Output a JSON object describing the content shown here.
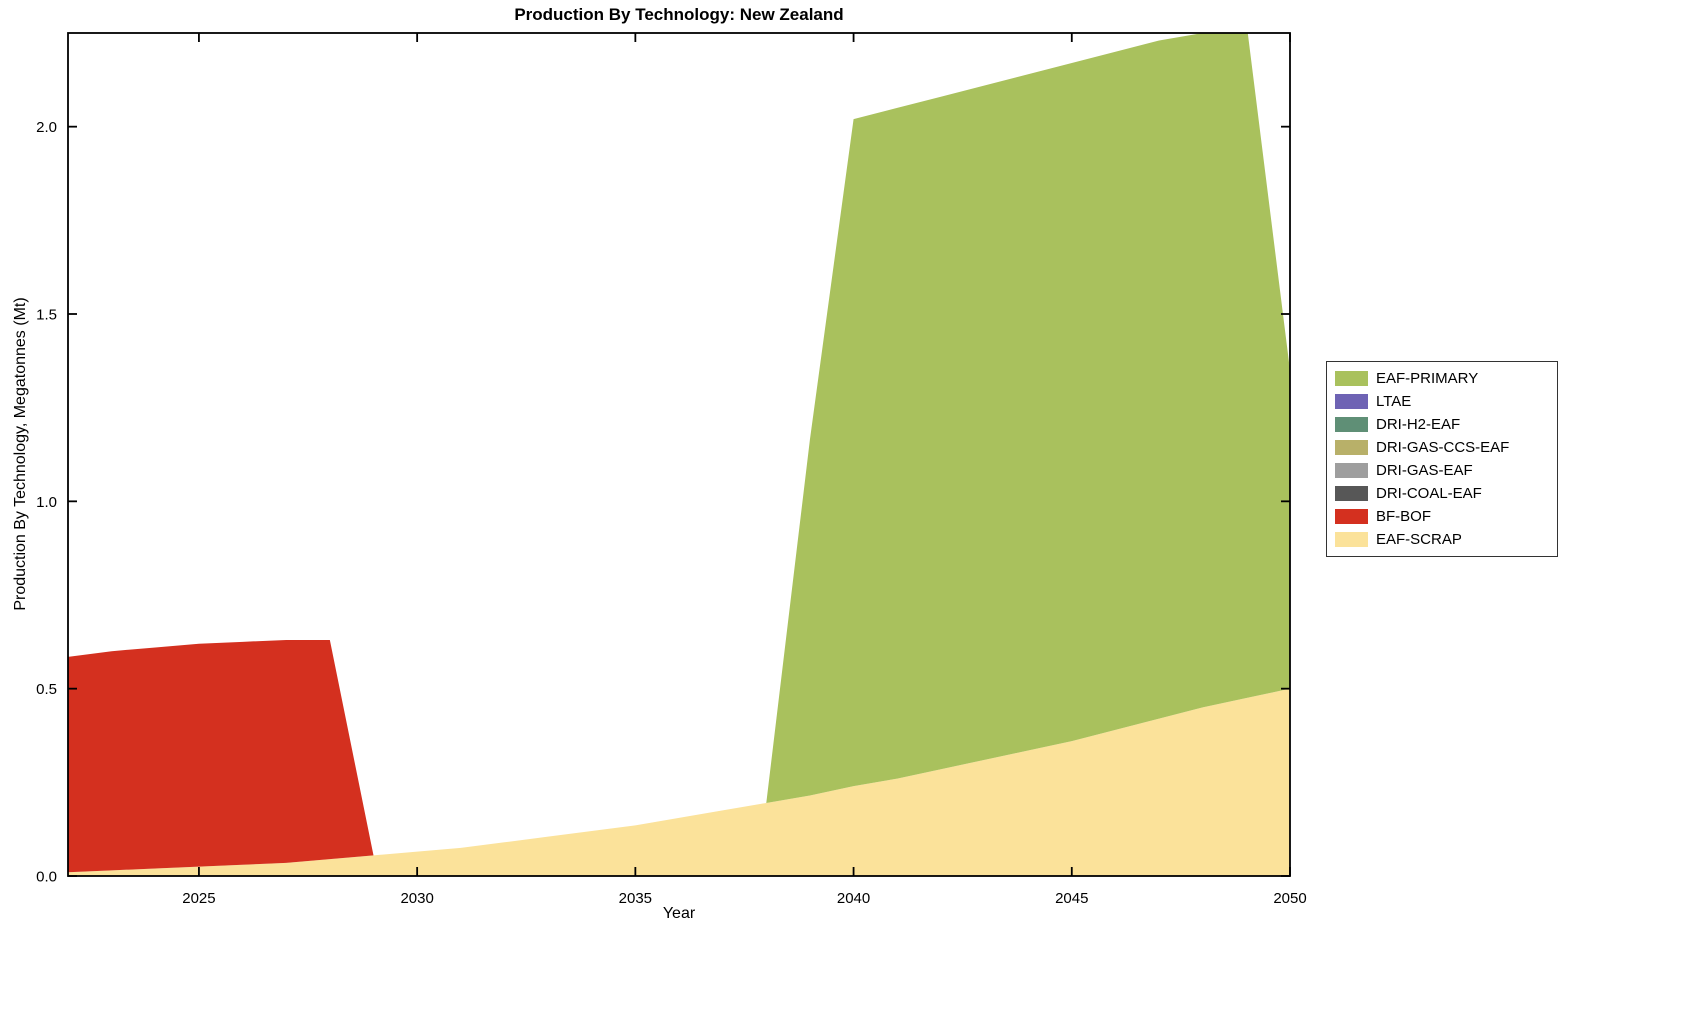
{
  "chart_data": {
    "type": "area",
    "stacked": true,
    "title": "Production By Technology: New Zealand",
    "xlabel": "Year",
    "ylabel": "Production By Technology, Megatonnes (Mt)",
    "xlim": [
      2022,
      2050
    ],
    "ylim": [
      0,
      2.25
    ],
    "x_ticks": [
      2025,
      2030,
      2035,
      2040,
      2045,
      2050
    ],
    "y_ticks": [
      0,
      0.5,
      1,
      1.5,
      2
    ],
    "y_tick_labels": [
      "0.0",
      "0.5",
      "1.0",
      "1.5",
      "2.0"
    ],
    "grid": false,
    "legend_position": "right-outside",
    "x": [
      2022,
      2023,
      2024,
      2025,
      2026,
      2027,
      2028,
      2029,
      2030,
      2031,
      2032,
      2033,
      2034,
      2035,
      2036,
      2037,
      2038,
      2039,
      2040,
      2041,
      2042,
      2043,
      2044,
      2045,
      2046,
      2047,
      2048,
      2049,
      2050
    ],
    "series": [
      {
        "name": "EAF-PRIMARY",
        "color": "#a9c15d",
        "values": [
          0,
          0,
          0,
          0,
          0,
          0,
          0,
          0,
          0,
          0,
          0,
          0,
          0,
          0,
          0,
          0,
          0,
          0.95,
          1.78,
          1.79,
          1.795,
          1.8,
          1.805,
          1.81,
          1.81,
          1.81,
          1.8,
          1.805,
          0.85
        ]
      },
      {
        "name": "LTAE",
        "color": "#6e63b4",
        "values": [
          0,
          0,
          0,
          0,
          0,
          0,
          0,
          0,
          0,
          0,
          0,
          0,
          0,
          0,
          0,
          0,
          0,
          0,
          0,
          0,
          0,
          0,
          0,
          0,
          0,
          0,
          0,
          0,
          0
        ]
      },
      {
        "name": "DRI-H2-EAF",
        "color": "#5f8f76",
        "values": [
          0,
          0,
          0,
          0,
          0,
          0,
          0,
          0,
          0,
          0,
          0,
          0,
          0,
          0,
          0,
          0,
          0,
          0,
          0,
          0,
          0,
          0,
          0,
          0,
          0,
          0,
          0,
          0,
          0
        ]
      },
      {
        "name": "DRI-GAS-CCS-EAF",
        "color": "#b8b069",
        "values": [
          0,
          0,
          0,
          0,
          0,
          0,
          0,
          0,
          0,
          0,
          0,
          0,
          0,
          0,
          0,
          0,
          0,
          0,
          0,
          0,
          0,
          0,
          0,
          0,
          0,
          0,
          0,
          0,
          0
        ]
      },
      {
        "name": "DRI-GAS-EAF",
        "color": "#9e9e9e",
        "values": [
          0,
          0,
          0,
          0,
          0,
          0,
          0,
          0,
          0,
          0,
          0,
          0,
          0,
          0,
          0,
          0,
          0,
          0,
          0,
          0,
          0,
          0,
          0,
          0,
          0,
          0,
          0,
          0,
          0
        ]
      },
      {
        "name": "DRI-COAL-EAF",
        "color": "#575757",
        "values": [
          0,
          0,
          0,
          0,
          0,
          0,
          0,
          0,
          0,
          0,
          0,
          0,
          0,
          0,
          0,
          0,
          0,
          0,
          0,
          0,
          0,
          0,
          0,
          0,
          0,
          0,
          0,
          0,
          0
        ]
      },
      {
        "name": "BF-BOF",
        "color": "#d4301f",
        "values": [
          0.575,
          0.585,
          0.59,
          0.595,
          0.595,
          0.595,
          0.585,
          0,
          0,
          0,
          0,
          0,
          0,
          0,
          0,
          0,
          0,
          0,
          0,
          0,
          0,
          0,
          0,
          0,
          0,
          0,
          0,
          0,
          0
        ]
      },
      {
        "name": "EAF-SCRAP",
        "color": "#fbe29a",
        "values": [
          0.01,
          0.015,
          0.02,
          0.025,
          0.03,
          0.035,
          0.045,
          0.055,
          0.065,
          0.075,
          0.09,
          0.105,
          0.12,
          0.135,
          0.155,
          0.175,
          0.195,
          0.215,
          0.24,
          0.26,
          0.285,
          0.31,
          0.335,
          0.36,
          0.39,
          0.42,
          0.45,
          0.475,
          0.5
        ]
      }
    ]
  }
}
